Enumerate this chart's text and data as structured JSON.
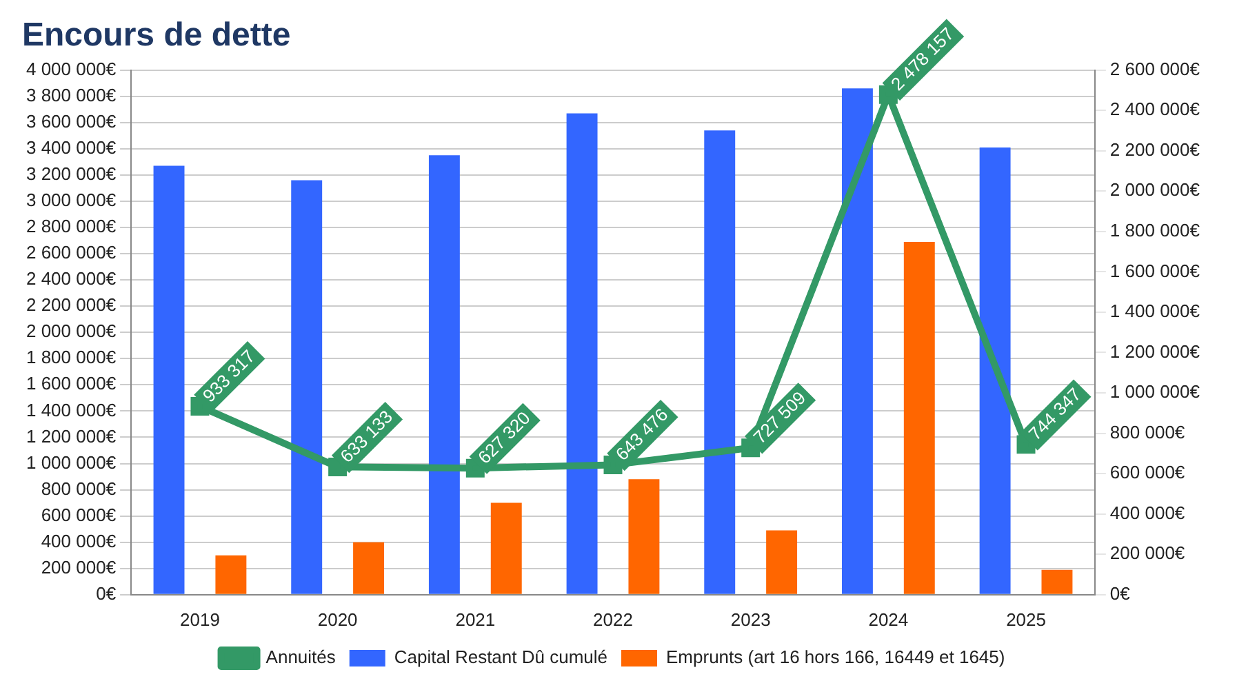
{
  "chart_data": {
    "type": "bar",
    "title": "Encours de dette",
    "categories": [
      "2019",
      "2020",
      "2021",
      "2022",
      "2023",
      "2024",
      "2025"
    ],
    "series": [
      {
        "name": "Capital Restant Dû cumulé",
        "color": "#3366ff",
        "values": [
          3270000,
          3160000,
          3350000,
          3670000,
          3540000,
          3860000,
          3410000
        ]
      },
      {
        "name": "Emprunts (art 16 hors 166, 16449 et 1645)",
        "color": "#ff6600",
        "values": [
          300000,
          400000,
          700000,
          880000,
          490000,
          2690000,
          190000
        ]
      },
      {
        "name": "Annuités",
        "type": "line",
        "axis": "y2",
        "color": "#339966",
        "marker": "square",
        "values": [
          933317,
          633133,
          627320,
          643476,
          727509,
          2478157,
          744347
        ],
        "value_labels": [
          "933 317",
          "633 133",
          "627 320",
          "643 476",
          "727 509",
          "2 478 157",
          "744 347"
        ]
      }
    ],
    "ylim": [
      0,
      4000000
    ],
    "yticks": [
      {
        "value": 0,
        "label": "0€"
      },
      {
        "value": 200000,
        "label": "200 000€"
      },
      {
        "value": 400000,
        "label": "400 000€"
      },
      {
        "value": 600000,
        "label": "600 000€"
      },
      {
        "value": 800000,
        "label": "800 000€"
      },
      {
        "value": 1000000,
        "label": "1 000 000€"
      },
      {
        "value": 1200000,
        "label": "1 200 000€"
      },
      {
        "value": 1400000,
        "label": "1 400 000€"
      },
      {
        "value": 1600000,
        "label": "1 600 000€"
      },
      {
        "value": 1800000,
        "label": "1 800 000€"
      },
      {
        "value": 2000000,
        "label": "2 000 000€"
      },
      {
        "value": 2200000,
        "label": "2 200 000€"
      },
      {
        "value": 2400000,
        "label": "2 400 000€"
      },
      {
        "value": 2600000,
        "label": "2 600 000€"
      },
      {
        "value": 2800000,
        "label": "2 800 000€"
      },
      {
        "value": 3000000,
        "label": "3 000 000€"
      },
      {
        "value": 3200000,
        "label": "3 200 000€"
      },
      {
        "value": 3400000,
        "label": "3 400 000€"
      },
      {
        "value": 3600000,
        "label": "3 600 000€"
      },
      {
        "value": 3800000,
        "label": "3 800 000€"
      },
      {
        "value": 4000000,
        "label": "4 000 000€"
      }
    ],
    "y2lim": [
      0,
      2600000
    ],
    "y2ticks": [
      {
        "value": 0,
        "label": "0€"
      },
      {
        "value": 200000,
        "label": "200 000€"
      },
      {
        "value": 400000,
        "label": "400 000€"
      },
      {
        "value": 600000,
        "label": "600 000€"
      },
      {
        "value": 800000,
        "label": "800 000€"
      },
      {
        "value": 1000000,
        "label": "1 000 000€"
      },
      {
        "value": 1200000,
        "label": "1 200 000€"
      },
      {
        "value": 1400000,
        "label": "1 400 000€"
      },
      {
        "value": 1600000,
        "label": "1 600 000€"
      },
      {
        "value": 1800000,
        "label": "1 800 000€"
      },
      {
        "value": 2000000,
        "label": "2 000 000€"
      },
      {
        "value": 2200000,
        "label": "2 200 000€"
      },
      {
        "value": 2400000,
        "label": "2 400 000€"
      },
      {
        "value": 2600000,
        "label": "2 600 000€"
      }
    ],
    "grid": "y",
    "legend": "bottom"
  }
}
